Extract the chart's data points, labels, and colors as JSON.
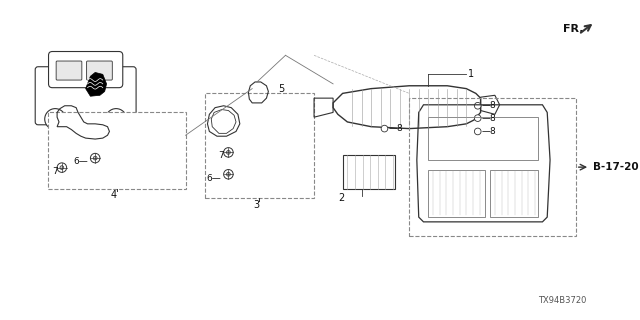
{
  "title": "",
  "background_color": "#ffffff",
  "diagram_id": "TX94B3720",
  "fr_label": "FR.",
  "reference_label": "B-17-20",
  "part_numbers": [
    1,
    2,
    3,
    4,
    5,
    6,
    7,
    8
  ],
  "figure_size": [
    6.4,
    3.2
  ],
  "dpi": 100,
  "line_color": "#333333",
  "dash_color": "#555555",
  "text_color": "#111111",
  "light_gray": "#aaaaaa",
  "dark_gray": "#444444"
}
